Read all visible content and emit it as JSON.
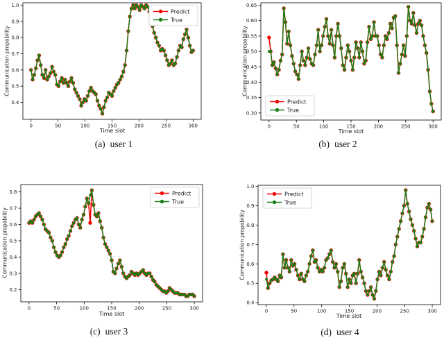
{
  "figure_background": "#ffffff",
  "chart_data": [
    {
      "type": "line",
      "caption_label": "(a)",
      "caption_text": "user 1",
      "xlabel": "Time slot",
      "ylabel": "Communication propability",
      "x_start": 0,
      "x_step": 3,
      "x_ticks": [
        0,
        50,
        100,
        150,
        200,
        250,
        300
      ],
      "y_ticks": [
        "0.4",
        "0.5",
        "0.6",
        "0.7",
        "0.8",
        "0.9",
        "1.0"
      ],
      "xlim": [
        -15,
        315
      ],
      "ylim": [
        0.295,
        1.015
      ],
      "legend": {
        "position": "upper-right",
        "entries": [
          {
            "label": "Predict",
            "color": "#f40000"
          },
          {
            "label": "True",
            "color": "#178017"
          }
        ]
      },
      "values": [
        0.6,
        0.54,
        0.57,
        0.61,
        0.66,
        0.69,
        0.63,
        0.57,
        0.55,
        0.6,
        0.54,
        0.56,
        0.58,
        0.62,
        0.59,
        0.57,
        0.51,
        0.5,
        0.53,
        0.55,
        0.52,
        0.54,
        0.52,
        0.5,
        0.53,
        0.55,
        0.52,
        0.48,
        0.46,
        0.44,
        0.42,
        0.38,
        0.4,
        0.42,
        0.41,
        0.44,
        0.47,
        0.49,
        0.47,
        0.46,
        0.45,
        0.41,
        0.38,
        0.36,
        0.33,
        0.37,
        0.41,
        0.43,
        0.46,
        0.45,
        0.44,
        0.47,
        0.49,
        0.51,
        0.52,
        0.54,
        0.56,
        0.59,
        0.63,
        0.72,
        0.84,
        0.93,
        0.98,
        1.0,
        0.98,
        1.0,
        0.99,
        0.97,
        1.0,
        0.99,
        0.98,
        1.0,
        0.99,
        0.96,
        0.92,
        0.87,
        0.83,
        0.8,
        0.77,
        0.75,
        0.72,
        0.73,
        0.72,
        0.69,
        0.66,
        0.63,
        0.64,
        0.66,
        0.63,
        0.64,
        0.68,
        0.72,
        0.75,
        0.74,
        0.79,
        0.82,
        0.85,
        0.8,
        0.75,
        0.71,
        0.72
      ],
      "predict_deviations": {}
    },
    {
      "type": "line",
      "caption_label": "(b)",
      "caption_text": "user 2",
      "xlabel": "Time slot",
      "ylabel": "Communication propability",
      "x_start": 0,
      "x_step": 3,
      "x_ticks": [
        0,
        50,
        100,
        150,
        200,
        250,
        300
      ],
      "y_ticks": [
        "0.30",
        "0.35",
        "0.40",
        "0.45",
        "0.50",
        "0.55",
        "0.60",
        "0.65"
      ],
      "xlim": [
        -15,
        315
      ],
      "ylim": [
        0.277,
        0.658
      ],
      "legend": {
        "position": "lower-left",
        "entries": [
          {
            "label": "Predict",
            "color": "#f40000"
          },
          {
            "label": "True",
            "color": "#178017"
          }
        ]
      },
      "values": [
        0.5,
        0.5,
        0.455,
        0.465,
        0.445,
        0.425,
        0.44,
        0.47,
        0.49,
        0.64,
        0.595,
        0.525,
        0.565,
        0.52,
        0.485,
        0.46,
        0.435,
        0.425,
        0.41,
        0.455,
        0.5,
        0.47,
        0.455,
        0.48,
        0.51,
        0.475,
        0.46,
        0.455,
        0.49,
        0.52,
        0.57,
        0.5,
        0.52,
        0.55,
        0.58,
        0.605,
        0.55,
        0.525,
        0.57,
        0.52,
        0.48,
        0.55,
        0.59,
        0.55,
        0.51,
        0.455,
        0.44,
        0.48,
        0.52,
        0.5,
        0.47,
        0.44,
        0.48,
        0.53,
        0.51,
        0.48,
        0.53,
        0.5,
        0.46,
        0.47,
        0.53,
        0.58,
        0.54,
        0.55,
        0.595,
        0.55,
        0.55,
        0.52,
        0.49,
        0.48,
        0.52,
        0.55,
        0.54,
        0.56,
        0.59,
        0.575,
        0.61,
        0.615,
        0.52,
        0.43,
        0.46,
        0.49,
        0.52,
        0.485,
        0.55,
        0.645,
        0.6,
        0.59,
        0.625,
        0.585,
        0.56,
        0.59,
        0.6,
        0.585,
        0.55,
        0.52,
        0.495,
        0.44,
        0.37,
        0.33,
        0.305
      ],
      "predict_deviations": {
        "0": 0.545
      }
    },
    {
      "type": "line",
      "caption_label": "(c)",
      "caption_text": "user 3",
      "xlabel": "Time slot",
      "ylabel": "Communication propability",
      "x_start": 0,
      "x_step": 3,
      "x_ticks": [
        0,
        50,
        100,
        150,
        200,
        250,
        300
      ],
      "y_ticks": [
        "0.2",
        "0.3",
        "0.4",
        "0.5",
        "0.6",
        "0.7",
        "0.8"
      ],
      "xlim": [
        -15,
        315
      ],
      "ylim": [
        0.125,
        0.845
      ],
      "legend": {
        "position": "upper-right",
        "entries": [
          {
            "label": "Predict",
            "color": "#f40000"
          },
          {
            "label": "True",
            "color": "#178017"
          }
        ]
      },
      "values": [
        0.61,
        0.62,
        0.61,
        0.63,
        0.65,
        0.66,
        0.67,
        0.65,
        0.63,
        0.6,
        0.57,
        0.56,
        0.55,
        0.52,
        0.5,
        0.46,
        0.43,
        0.41,
        0.4,
        0.41,
        0.43,
        0.46,
        0.48,
        0.51,
        0.53,
        0.56,
        0.59,
        0.61,
        0.63,
        0.64,
        0.6,
        0.58,
        0.63,
        0.66,
        0.71,
        0.76,
        0.73,
        0.78,
        0.81,
        0.72,
        0.66,
        0.65,
        0.67,
        0.62,
        0.58,
        0.52,
        0.48,
        0.46,
        0.44,
        0.42,
        0.38,
        0.31,
        0.3,
        0.33,
        0.36,
        0.38,
        0.34,
        0.3,
        0.28,
        0.27,
        0.28,
        0.29,
        0.31,
        0.3,
        0.29,
        0.3,
        0.29,
        0.3,
        0.31,
        0.32,
        0.3,
        0.29,
        0.3,
        0.3,
        0.28,
        0.26,
        0.25,
        0.23,
        0.22,
        0.21,
        0.2,
        0.19,
        0.19,
        0.18,
        0.19,
        0.21,
        0.2,
        0.19,
        0.18,
        0.18,
        0.18,
        0.17,
        0.17,
        0.17,
        0.17,
        0.16,
        0.16,
        0.17,
        0.17,
        0.17,
        0.16
      ],
      "predict_deviations": {
        "37": 0.61
      }
    },
    {
      "type": "line",
      "caption_label": "(d)",
      "caption_text": "user 4",
      "xlabel": "Time slot",
      "ylabel": "Communication propability",
      "x_start": 0,
      "x_step": 3,
      "x_ticks": [
        0,
        50,
        100,
        150,
        200,
        250,
        300
      ],
      "y_ticks": [
        "0.4",
        "0.5",
        "0.6",
        "0.7",
        "0.8",
        "0.9",
        "1.0"
      ],
      "xlim": [
        -15,
        315
      ],
      "ylim": [
        0.39,
        1.005
      ],
      "legend": {
        "position": "upper-left",
        "entries": [
          {
            "label": "Predict",
            "color": "#f40000"
          },
          {
            "label": "True",
            "color": "#178017"
          }
        ]
      },
      "values": [
        0.52,
        0.475,
        0.5,
        0.515,
        0.52,
        0.53,
        0.52,
        0.51,
        0.54,
        0.53,
        0.65,
        0.58,
        0.62,
        0.58,
        0.56,
        0.62,
        0.59,
        0.6,
        0.57,
        0.54,
        0.52,
        0.55,
        0.52,
        0.51,
        0.54,
        0.56,
        0.6,
        0.64,
        0.67,
        0.61,
        0.62,
        0.58,
        0.56,
        0.57,
        0.56,
        0.58,
        0.62,
        0.63,
        0.65,
        0.67,
        0.61,
        0.58,
        0.6,
        0.56,
        0.48,
        0.51,
        0.58,
        0.6,
        0.55,
        0.48,
        0.52,
        0.5,
        0.54,
        0.55,
        0.5,
        0.55,
        0.62,
        0.56,
        0.53,
        0.5,
        0.46,
        0.44,
        0.46,
        0.48,
        0.44,
        0.42,
        0.46,
        0.52,
        0.56,
        0.54,
        0.58,
        0.61,
        0.57,
        0.54,
        0.52,
        0.56,
        0.61,
        0.64,
        0.7,
        0.74,
        0.78,
        0.82,
        0.86,
        0.9,
        0.98,
        0.91,
        0.87,
        0.83,
        0.8,
        0.77,
        0.73,
        0.69,
        0.71,
        0.71,
        0.74,
        0.78,
        0.84,
        0.89,
        0.91,
        0.88,
        0.82
      ],
      "predict_deviations": {
        "0": 0.555
      }
    }
  ]
}
